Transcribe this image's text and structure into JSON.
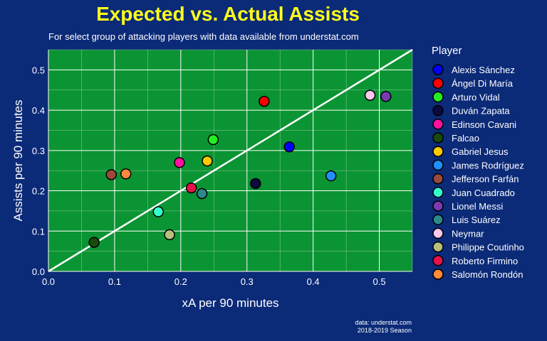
{
  "chart_data": {
    "type": "scatter",
    "title": "Expected vs. Actual Assists",
    "subtitle": "For select group of attacking players with data available from understat.com",
    "xlabel": "xA per 90 minutes",
    "ylabel": "Assists per 90 minutes",
    "xlim": [
      0,
      0.55
    ],
    "ylim": [
      0,
      0.55
    ],
    "xticks": [
      "0.0",
      "0.1",
      "0.2",
      "0.3",
      "0.4",
      "0.5"
    ],
    "yticks": [
      "0.0",
      "0.1",
      "0.2",
      "0.3",
      "0.4",
      "0.5"
    ],
    "reference_line": "y = x",
    "legend_title": "Player",
    "legend_position": "right",
    "caption_line1": "data: understat.com",
    "caption_line2": "2018-2019 Season",
    "points": [
      {
        "player": "Alexis Sánchez",
        "x": 0.364,
        "y": 0.309,
        "color": "#0000ff"
      },
      {
        "player": "Ángel Di María",
        "x": 0.326,
        "y": 0.422,
        "color": "#ff0000"
      },
      {
        "player": "Arturo Vidal",
        "x": 0.249,
        "y": 0.327,
        "color": "#22ee22"
      },
      {
        "player": "Duván Zapata",
        "x": 0.313,
        "y": 0.218,
        "color": "#0a0a40"
      },
      {
        "player": "Edinson Cavani",
        "x": 0.198,
        "y": 0.27,
        "color": "#ff10a0"
      },
      {
        "player": "Falcao",
        "x": 0.069,
        "y": 0.072,
        "color": "#1a4a0a"
      },
      {
        "player": "Gabriel Jesus",
        "x": 0.24,
        "y": 0.274,
        "color": "#ffc800"
      },
      {
        "player": "James Rodríguez",
        "x": 0.427,
        "y": 0.237,
        "color": "#1e90ff"
      },
      {
        "player": "Jefferson Farfán",
        "x": 0.095,
        "y": 0.24,
        "color": "#9a4a3a"
      },
      {
        "player": "Juan Cuadrado",
        "x": 0.166,
        "y": 0.148,
        "color": "#33ffcc"
      },
      {
        "player": "Lionel Messi",
        "x": 0.51,
        "y": 0.434,
        "color": "#7a3ab0"
      },
      {
        "player": "Luis Suárez",
        "x": 0.232,
        "y": 0.193,
        "color": "#2a8a8a"
      },
      {
        "player": "Neymar",
        "x": 0.486,
        "y": 0.437,
        "color": "#ffc8ee"
      },
      {
        "player": "Philippe Coutinho",
        "x": 0.183,
        "y": 0.091,
        "color": "#b8c07a"
      },
      {
        "player": "Roberto Firmino",
        "x": 0.216,
        "y": 0.207,
        "color": "#e8104a"
      },
      {
        "player": "Salomón Rondón",
        "x": 0.117,
        "y": 0.242,
        "color": "#ff8a3a"
      }
    ]
  }
}
